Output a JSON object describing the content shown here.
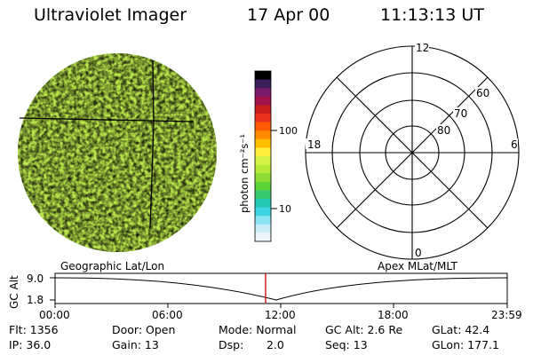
{
  "header": {
    "instrument": "Ultraviolet Imager",
    "date": "17 Apr 00",
    "time": "11:13:13 UT"
  },
  "colorbar": {
    "unit_label": "photon cm⁻²s⁻¹",
    "ticks": [
      "100",
      "10"
    ],
    "colors": [
      "#000000",
      "#3a1f5c",
      "#7a1a6a",
      "#a0124a",
      "#c81e1e",
      "#e8321e",
      "#ff5a00",
      "#ff8c00",
      "#ffbf00",
      "#ffeb3b",
      "#d7f24a",
      "#b5ea3a",
      "#8cdc34",
      "#5fd23a",
      "#38c870",
      "#27c8b0",
      "#3fd3e6",
      "#8ce3f2",
      "#c8eef8",
      "#eef6fb"
    ]
  },
  "polar": {
    "mlt_labels": [
      "12",
      "18",
      "6",
      "0"
    ],
    "lat_labels": [
      "60",
      "70",
      "80"
    ]
  },
  "timeline": {
    "left_label": "Geographic Lat/Lon",
    "right_label": "Apex MLat/MLT",
    "axis_title": "GC Alt",
    "y_labels": [
      "9.0",
      "1.8"
    ],
    "x_labels": [
      "00:00",
      "06:00",
      "12:00",
      "18:00",
      "23:59"
    ]
  },
  "status": {
    "flt": "Flt: 1356",
    "ip": "IP: 36.0",
    "door": "Door: Open",
    "gain": "Gain: 13",
    "mode": "Mode: Normal",
    "dsp_label": "Dsp:",
    "dsp_value": "2.0",
    "gcalt": "GC Alt: 2.6 Re",
    "seq": "Seq: 13",
    "glat": "GLat:  42.4",
    "glon": "GLon: 177.1"
  }
}
